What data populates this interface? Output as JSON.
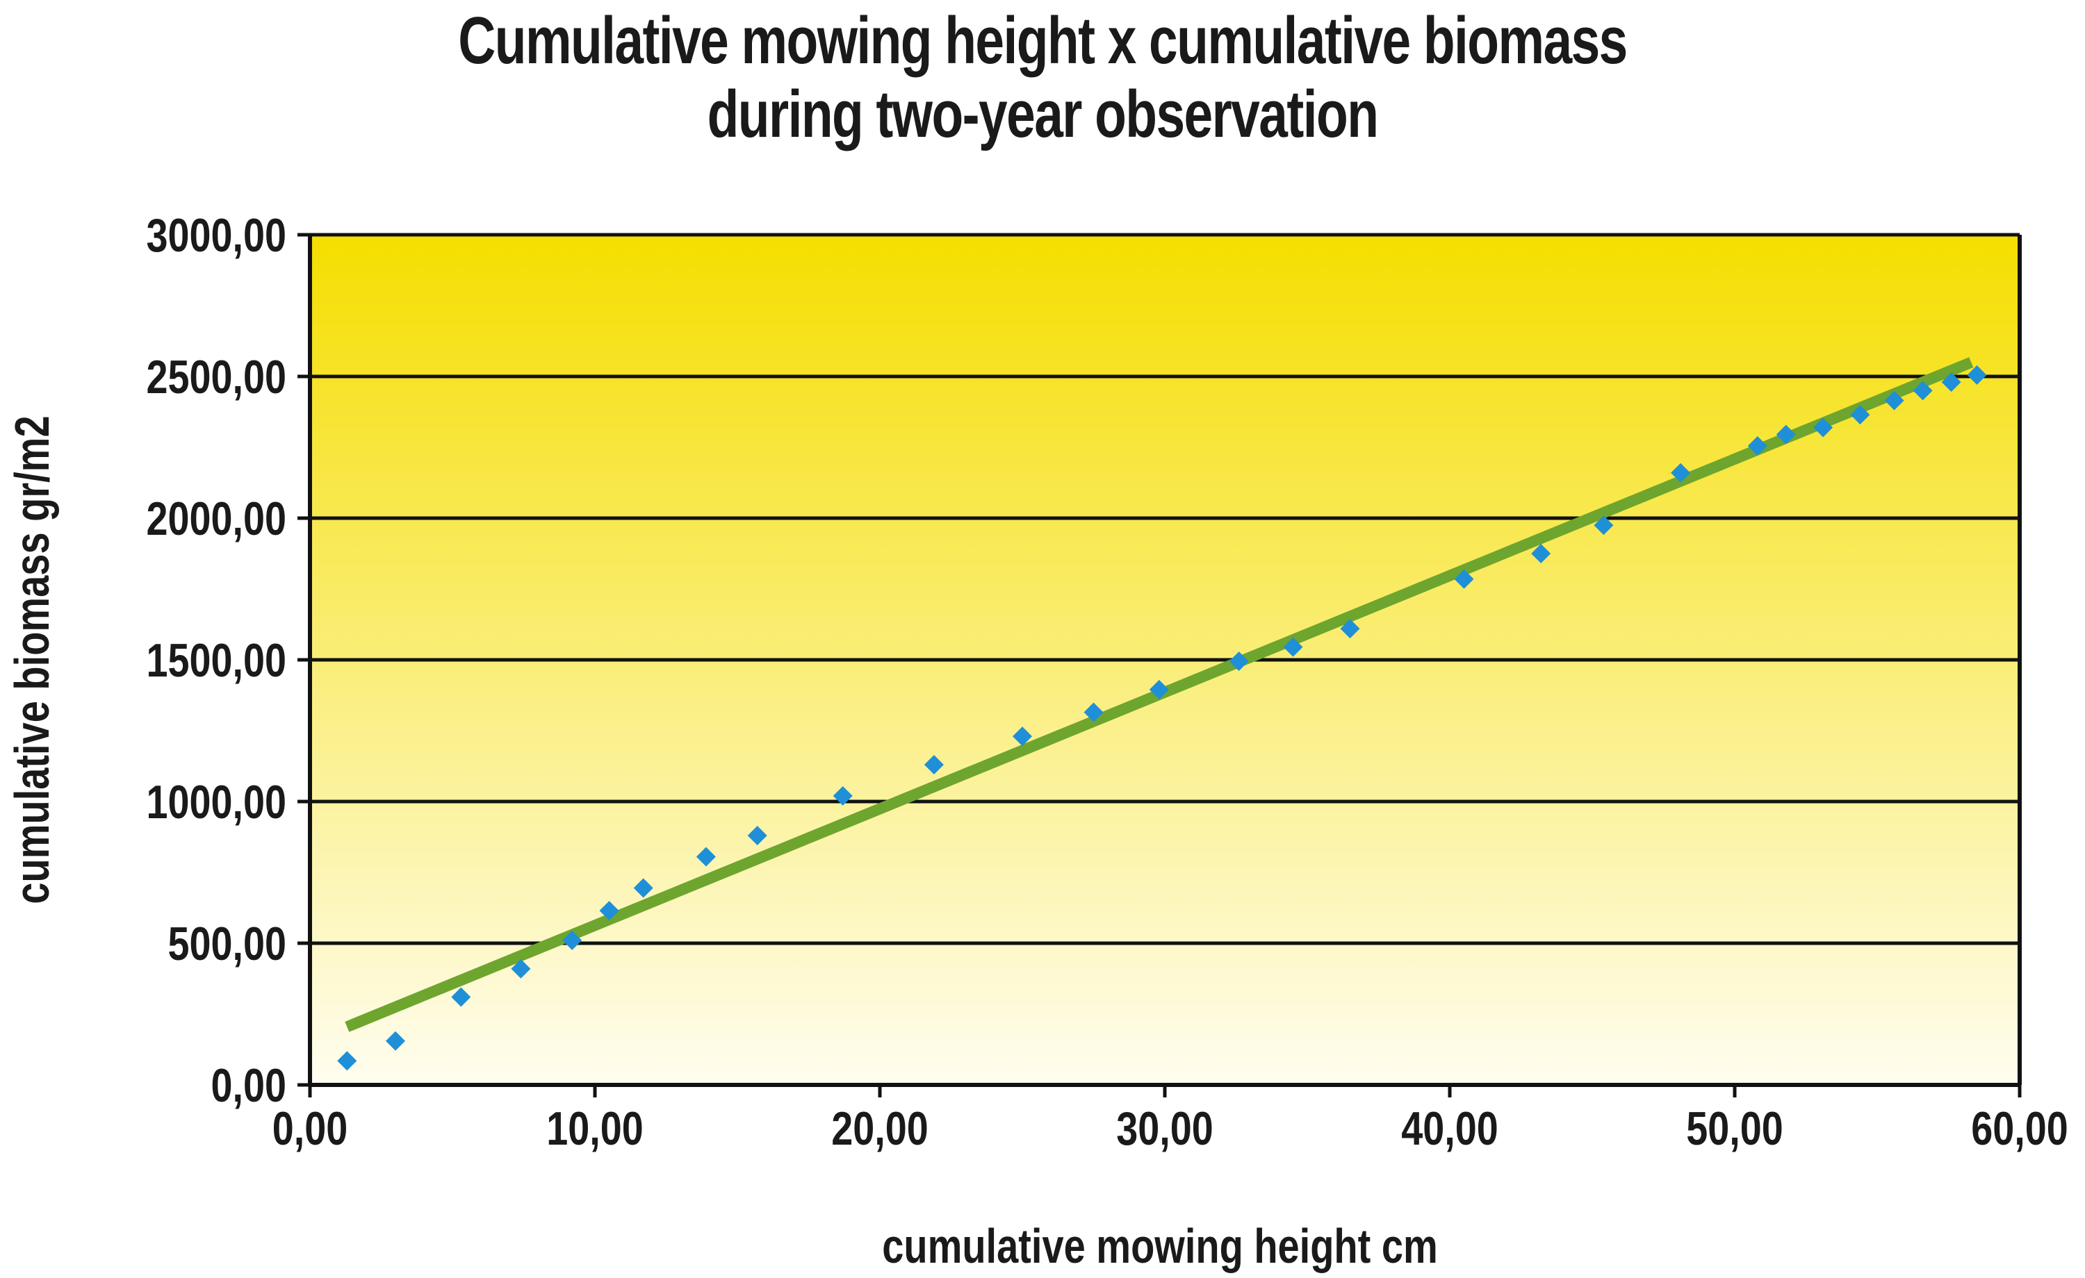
{
  "chart_data": {
    "type": "scatter",
    "title": "Cumulative mowing height x cumulative biomass",
    "subtitle": "during two-year observation",
    "xlabel": "cumulative mowing height cm",
    "ylabel": "cumulative biomass gr/m2",
    "xlim": [
      0,
      60
    ],
    "ylim": [
      0,
      3000
    ],
    "x_ticks": [
      "0,00",
      "10,00",
      "20,00",
      "30,00",
      "40,00",
      "50,00",
      "60,00"
    ],
    "y_ticks": [
      "0,00",
      "500,00",
      "1000,00",
      "1500,00",
      "2000,00",
      "2500,00",
      "3000,00"
    ],
    "grid": "horizontal",
    "background": "gradient yellow",
    "colors": {
      "points": "#1f8fd8",
      "trendline": "#6ea52e",
      "bg_top": "#f5de00",
      "bg_bottom": "#fffdf0"
    },
    "series": [
      {
        "values": [
          [
            1.3,
            85
          ],
          [
            3.0,
            155
          ],
          [
            5.3,
            310
          ],
          [
            7.4,
            410
          ],
          [
            9.2,
            510
          ],
          [
            10.5,
            615
          ],
          [
            11.7,
            695
          ],
          [
            13.9,
            805
          ],
          [
            15.7,
            880
          ],
          [
            18.7,
            1020
          ],
          [
            21.9,
            1130
          ],
          [
            25.0,
            1230
          ],
          [
            27.5,
            1315
          ],
          [
            29.8,
            1395
          ],
          [
            32.6,
            1495
          ],
          [
            34.5,
            1545
          ],
          [
            36.5,
            1610
          ],
          [
            40.5,
            1785
          ],
          [
            43.2,
            1875
          ],
          [
            45.4,
            1975
          ],
          [
            48.1,
            2160
          ],
          [
            50.8,
            2255
          ],
          [
            51.8,
            2295
          ],
          [
            53.1,
            2320
          ],
          [
            54.4,
            2365
          ],
          [
            55.6,
            2415
          ],
          [
            56.6,
            2450
          ],
          [
            57.6,
            2480
          ],
          [
            58.5,
            2505
          ]
        ]
      }
    ],
    "trendline": {
      "type": "linear",
      "x": [
        1.3,
        58.3
      ],
      "y": [
        205,
        2550
      ]
    }
  }
}
